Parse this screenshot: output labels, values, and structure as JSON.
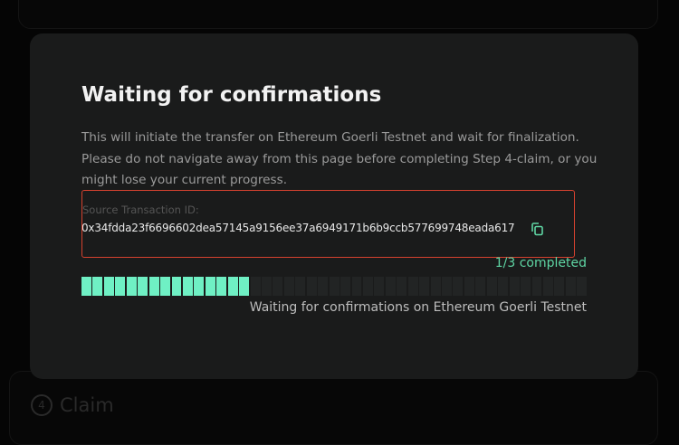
{
  "background": {
    "step4_number": "4",
    "step4_label": "Claim"
  },
  "modal": {
    "title": "Waiting for confirmations",
    "description": "This will initiate the transfer on Ethereum Goerli Testnet and wait for finalization. Please do not navigate away from this page before completing Step 4-claim, or you might lose your current progress.",
    "source_tx_label": "Source Transaction ID:",
    "source_tx_id": "0x34fdda23f6696602dea57145a9156ee37a6949171b6b9ccb577699748eada617",
    "copy_icon": "copy-icon",
    "completed_text": "1/3 completed",
    "progress_fraction": 0.3333,
    "status_text": "Waiting for confirmations on Ethereum Goerli Testnet"
  },
  "colors": {
    "accent": "#6ff0c4",
    "completed_text": "#5fd6a4",
    "highlight_border": "#d6422f",
    "modal_bg": "#1a1b1b"
  }
}
